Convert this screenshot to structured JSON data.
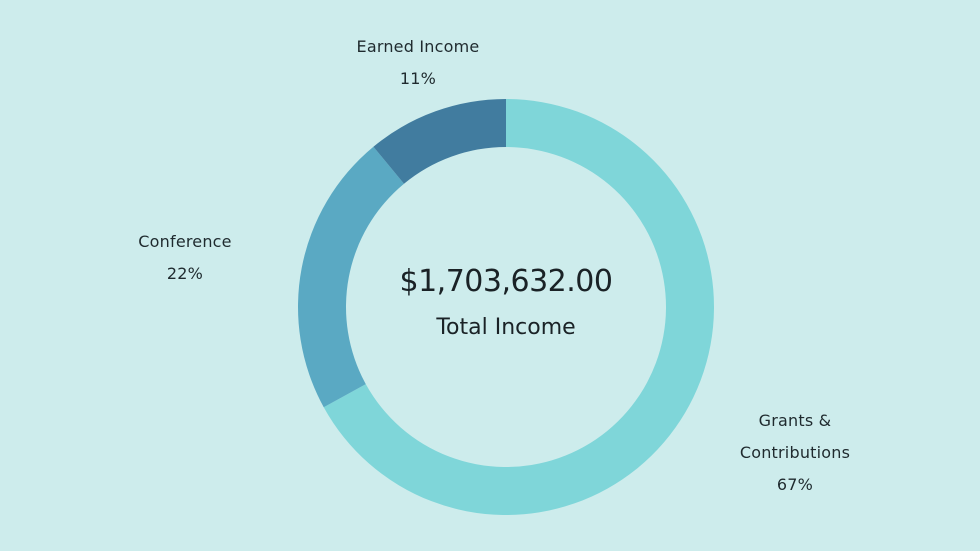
{
  "chart_data": {
    "type": "pie",
    "center_value": "$1,703,632.00",
    "center_label": "Total Income",
    "slices": [
      {
        "label": "Grants & Contributions",
        "value": 67,
        "display": "67%",
        "color": "#7fd6d9"
      },
      {
        "label": "Conference",
        "value": 22,
        "display": "22%",
        "color": "#5aa9c3"
      },
      {
        "label": "Earned Income",
        "value": 11,
        "display": "11%",
        "color": "#417c9f"
      }
    ]
  },
  "labels": {
    "earned": {
      "name": "Earned Income",
      "pct": "11%"
    },
    "conference": {
      "name": "Conference",
      "pct": "22%"
    },
    "grants": {
      "line1": "Grants &",
      "line2": "Contributions",
      "pct": "67%"
    }
  }
}
